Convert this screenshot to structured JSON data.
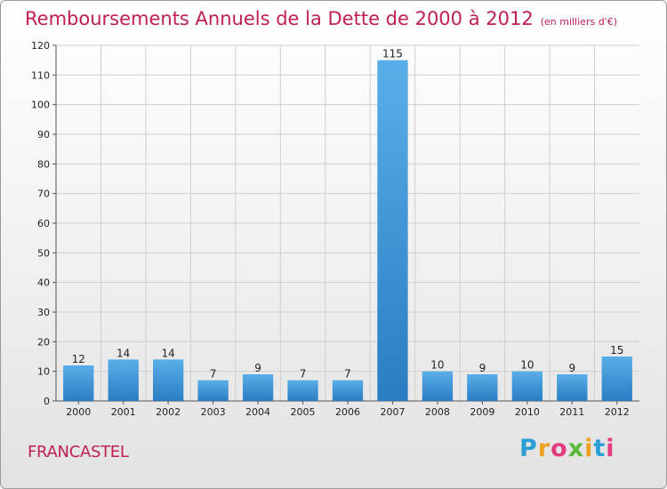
{
  "title": "Remboursements Annuels de la Dette de 2000 à 2012",
  "unit": "(en milliers d'€)",
  "town": "FRANCASTEL",
  "logo": {
    "letters": [
      "P",
      "r",
      "o",
      "x",
      "i",
      "t",
      "i"
    ],
    "colors": [
      "#2a9fd6",
      "#f0a020",
      "#e23b7e",
      "#58b83a",
      "#f0a020",
      "#2a9fd6",
      "#e23b7e"
    ]
  },
  "chart_data": {
    "type": "bar",
    "categories": [
      "2000",
      "2001",
      "2002",
      "2003",
      "2004",
      "2005",
      "2006",
      "2007",
      "2008",
      "2009",
      "2010",
      "2011",
      "2012"
    ],
    "values": [
      12,
      14,
      14,
      7,
      9,
      7,
      7,
      115,
      10,
      9,
      10,
      9,
      15
    ],
    "ylim": [
      0,
      120
    ],
    "yticks": [
      0,
      10,
      20,
      30,
      40,
      50,
      60,
      70,
      80,
      90,
      100,
      110,
      120
    ],
    "grid": true,
    "bar_color_top": "#5aaee8",
    "bar_color_bottom": "#2a7dc2"
  }
}
